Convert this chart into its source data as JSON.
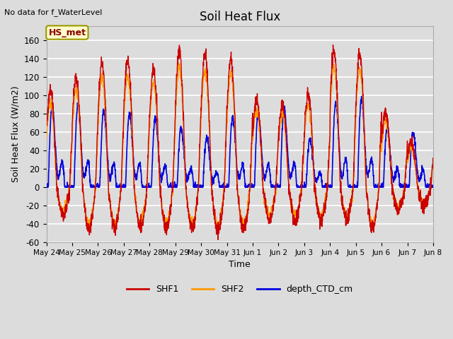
{
  "title": "Soil Heat Flux",
  "ylabel": "Soil Heat Flux (W/m2)",
  "xlabel": "Time",
  "top_annotation": "No data for f_WaterLevel",
  "station_label": "HS_met",
  "ylim": [
    -60,
    175
  ],
  "yticks": [
    -60,
    -40,
    -20,
    0,
    20,
    40,
    60,
    80,
    100,
    120,
    140,
    160
  ],
  "background_color": "#dcdcdc",
  "plot_bg_color": "#dcdcdc",
  "grid_color": "white",
  "series": {
    "SHF1": {
      "color": "#cc0000",
      "lw": 1.0
    },
    "SHF2": {
      "color": "#ff9900",
      "lw": 1.0
    },
    "depth_CTD_cm": {
      "color": "#0000dd",
      "lw": 1.2
    }
  },
  "xtick_labels": [
    "May 24",
    "May 25",
    "May 26",
    "May 27",
    "May 28",
    "May 29",
    "May 30",
    "May 31",
    "Jun 1",
    "Jun 2",
    "Jun 3",
    "Jun 4",
    "Jun 5",
    "Jun 6",
    "Jun 7",
    "Jun 8"
  ],
  "num_days": 15,
  "pts_per_day": 144
}
